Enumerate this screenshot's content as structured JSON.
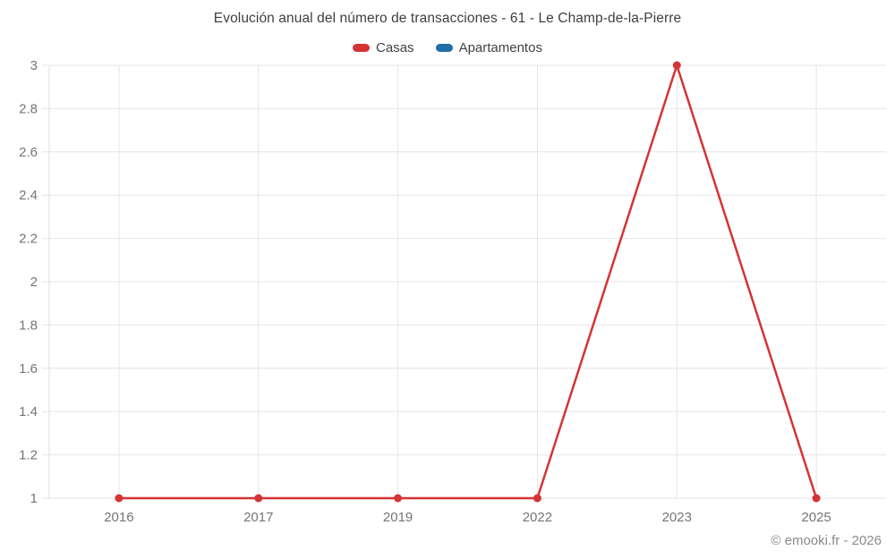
{
  "header": {
    "title": "Evolución anual del número de transacciones - 61 - Le Champ-de-la-Pierre"
  },
  "legend": {
    "items": [
      {
        "id": "casas",
        "label": "Casas",
        "color": "#d53334"
      },
      {
        "id": "apartamentos",
        "label": "Apartamentos",
        "color": "#1d6fa5"
      }
    ]
  },
  "footer": {
    "credit": "© emooki.fr - 2026"
  },
  "chart_data": {
    "type": "line",
    "title": "Evolución anual del número de transacciones - 61 - Le Champ-de-la-Pierre",
    "categories": [
      "2016",
      "2017",
      "2019",
      "2022",
      "2023",
      "2025"
    ],
    "series": [
      {
        "name": "Casas",
        "color": "#d53334",
        "values": [
          1,
          1,
          1,
          1,
          3,
          1
        ]
      },
      {
        "name": "Apartamentos",
        "color": "#1d6fa5",
        "values": []
      }
    ],
    "xlabel": "",
    "ylabel": "",
    "ylim": [
      1,
      3
    ],
    "ytick_step": 0.2,
    "ytick_labels": [
      "1",
      "1.2",
      "1.4",
      "1.6",
      "1.8",
      "2",
      "2.2",
      "2.4",
      "2.6",
      "2.8",
      "3"
    ],
    "grid": true,
    "legend_position": "top",
    "credit": "© emooki.fr - 2026",
    "colors": {
      "grid_line": "#e6e6e6",
      "axis_line": "#dedede",
      "tick_label": "#757575",
      "title_text": "#3f3f3f"
    }
  }
}
